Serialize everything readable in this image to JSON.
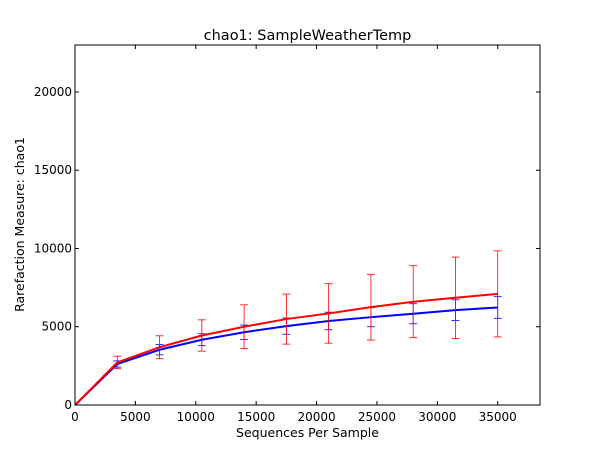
{
  "chart_data": {
    "type": "line",
    "title": "chao1: SampleWeatherTemp",
    "xlabel": "Sequences Per Sample",
    "ylabel": "Rarefaction Measure: chao1",
    "xlim": [
      0,
      38500
    ],
    "ylim": [
      0,
      23000
    ],
    "x_ticks": [
      0,
      5000,
      10000,
      15000,
      20000,
      25000,
      30000,
      35000
    ],
    "x_tick_labels": [
      "0",
      "5000",
      "10000",
      "15000",
      "20000",
      "25000",
      "30000",
      "35000"
    ],
    "y_ticks": [
      0,
      5000,
      10000,
      15000,
      20000
    ],
    "y_tick_labels": [
      "0",
      "5000",
      "10000",
      "15000",
      "20000"
    ],
    "grid": false,
    "legend": "none",
    "series": [
      {
        "color": "#0000ff",
        "x": [
          10,
          3500,
          7000,
          10500,
          14000,
          17500,
          21000,
          24500,
          28000,
          31500,
          35000
        ],
        "y": [
          0,
          2620,
          3530,
          4170,
          4650,
          5040,
          5370,
          5610,
          5830,
          6060,
          6230
        ],
        "error": [
          0,
          200,
          330,
          380,
          460,
          520,
          560,
          610,
          640,
          660,
          690
        ]
      },
      {
        "color": "#ff0000",
        "x": [
          10,
          3500,
          7000,
          10500,
          14000,
          17500,
          21000,
          24500,
          28000,
          31500,
          35000
        ],
        "y": [
          0,
          2720,
          3690,
          4440,
          5000,
          5490,
          5850,
          6250,
          6600,
          6850,
          7100
        ],
        "error": [
          0,
          400,
          730,
          1000,
          1400,
          1600,
          1900,
          2100,
          2300,
          2600,
          2750
        ]
      }
    ]
  }
}
